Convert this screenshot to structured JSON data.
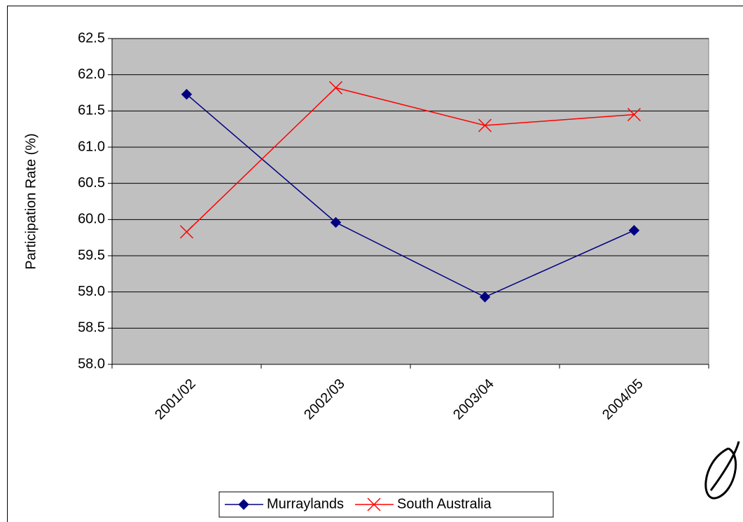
{
  "chart_data": {
    "type": "line",
    "y_label": "Participation Rate (%)",
    "categories": [
      "2001/02",
      "2002/03",
      "2003/04",
      "2004/05"
    ],
    "series": [
      {
        "name": "Murraylands",
        "color": "#000080",
        "marker": "diamond",
        "values": [
          61.73,
          59.96,
          58.93,
          59.85
        ]
      },
      {
        "name": "South Australia",
        "color": "#ff0000",
        "marker": "x",
        "values": [
          59.83,
          61.82,
          61.3,
          61.45
        ]
      }
    ],
    "ylim": [
      58,
      62.5
    ],
    "yticks": [
      {
        "value": 58,
        "label": "58.0"
      },
      58.5,
      {
        "value": 59,
        "label": "59.0"
      },
      59.5,
      {
        "value": 60,
        "label": "60.0"
      },
      60.5,
      {
        "value": 61,
        "label": "61.0"
      },
      61.5,
      {
        "value": 62,
        "label": "62.0"
      },
      62.5
    ],
    "grid": true,
    "legend": "bottom"
  }
}
